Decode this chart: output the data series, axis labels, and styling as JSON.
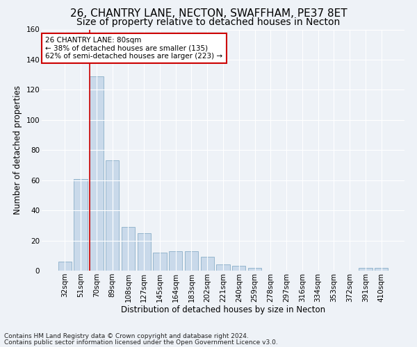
{
  "title1": "26, CHANTRY LANE, NECTON, SWAFFHAM, PE37 8ET",
  "title2": "Size of property relative to detached houses in Necton",
  "xlabel": "Distribution of detached houses by size in Necton",
  "ylabel": "Number of detached properties",
  "categories": [
    "32sqm",
    "51sqm",
    "70sqm",
    "89sqm",
    "108sqm",
    "127sqm",
    "145sqm",
    "164sqm",
    "183sqm",
    "202sqm",
    "221sqm",
    "240sqm",
    "259sqm",
    "278sqm",
    "297sqm",
    "316sqm",
    "334sqm",
    "353sqm",
    "372sqm",
    "391sqm",
    "410sqm"
  ],
  "values": [
    6,
    61,
    129,
    73,
    29,
    25,
    12,
    13,
    13,
    9,
    4,
    3,
    2,
    0,
    0,
    0,
    0,
    0,
    0,
    2,
    2
  ],
  "bar_color": "#c9d9ea",
  "bar_edge_color": "#8aafc8",
  "vline_x_index": 2,
  "vline_color": "#cc0000",
  "ylim": [
    0,
    160
  ],
  "yticks": [
    0,
    20,
    40,
    60,
    80,
    100,
    120,
    140,
    160
  ],
  "annotation_title": "26 CHANTRY LANE: 80sqm",
  "annotation_line1": "← 38% of detached houses are smaller (135)",
  "annotation_line2": "62% of semi-detached houses are larger (223) →",
  "annotation_box_color": "#ffffff",
  "annotation_box_edge": "#cc0000",
  "footer1": "Contains HM Land Registry data © Crown copyright and database right 2024.",
  "footer2": "Contains public sector information licensed under the Open Government Licence v3.0.",
  "bg_color": "#eef2f7",
  "grid_color": "#ffffff",
  "title1_fontsize": 11,
  "title2_fontsize": 10,
  "axis_label_fontsize": 8.5,
  "tick_fontsize": 7.5,
  "footer_fontsize": 6.5
}
